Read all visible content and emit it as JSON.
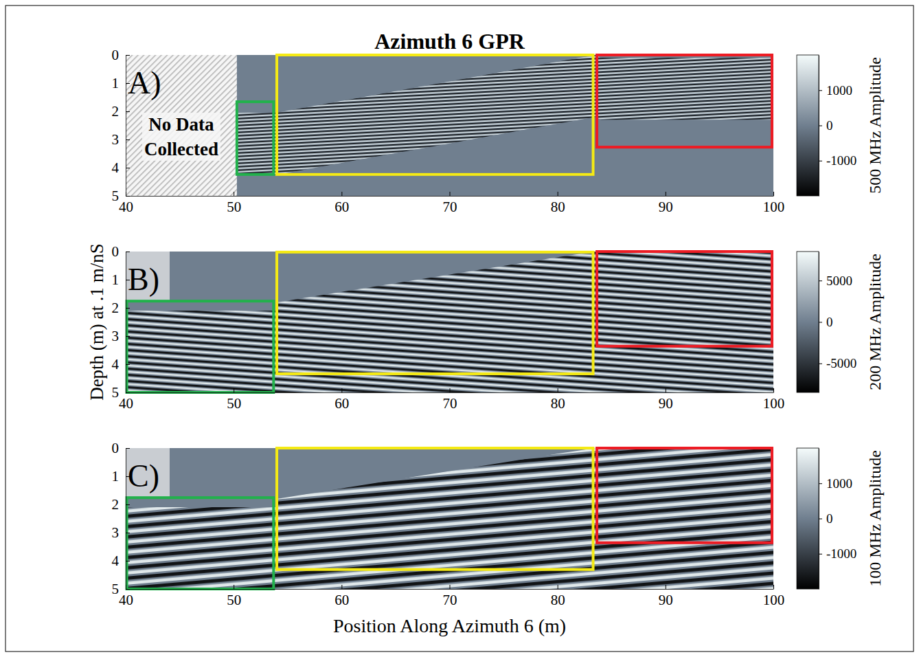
{
  "chart_data": [
    {
      "type": "heatmap",
      "title": "Azimuth 6 GPR",
      "panel_label": "A)",
      "xlim": [
        40,
        100
      ],
      "xticks": [
        40,
        50,
        60,
        70,
        80,
        90,
        100
      ],
      "ylim": [
        0,
        5
      ],
      "yticks": [
        0,
        1,
        2,
        3,
        4,
        5
      ],
      "colorbar": {
        "label": "500 MHz Amplitude",
        "range": [
          -2000,
          2000
        ],
        "ticks": [
          -1000,
          0,
          1000
        ],
        "colors": [
          "#000000",
          "#707f8f",
          "#f4fbfb"
        ]
      },
      "no_data": {
        "label": "No Data Collected",
        "x": [
          40,
          50.3
        ]
      },
      "data_extent": {
        "x": [
          50.3,
          54,
          60,
          70,
          80,
          83.5,
          84,
          90,
          100
        ],
        "top": [
          2.05,
          2.05,
          1.63,
          0.94,
          0.24,
          0.0,
          0.1,
          0.1,
          0.1
        ],
        "bottom": [
          4.25,
          4.25,
          3.83,
          3.14,
          2.44,
          2.2,
          2.3,
          2.3,
          2.3
        ]
      },
      "boxes": [
        {
          "color": "#22b14c",
          "x": [
            50.3,
            53.7
          ],
          "y": [
            1.66,
            4.24
          ]
        },
        {
          "color": "#f5ea14",
          "x": [
            54.0,
            83.3
          ],
          "y": [
            0.0,
            4.24
          ]
        },
        {
          "color": "#ed1c24",
          "x": [
            83.65,
            99.87
          ],
          "y": [
            0.0,
            3.27
          ]
        }
      ]
    },
    {
      "type": "heatmap",
      "panel_label": "B)",
      "ylabel": "Depth (m) at .1 m/nS",
      "xlim": [
        40,
        100
      ],
      "xticks": [
        40,
        50,
        60,
        70,
        80,
        90,
        100
      ],
      "ylim": [
        0,
        5
      ],
      "yticks": [
        0,
        1,
        2,
        3,
        4,
        5
      ],
      "colorbar": {
        "label": "200 MHz Amplitude",
        "range": [
          -8500,
          8500
        ],
        "ticks": [
          -5000,
          0,
          5000
        ],
        "colors": [
          "#000000",
          "#707f8f",
          "#f4fbfb"
        ]
      },
      "data_extent": {
        "x": [
          40,
          54,
          54.1,
          60,
          70,
          80,
          83.5,
          84,
          100
        ],
        "top": [
          2.1,
          2.1,
          1.8,
          1.43,
          0.82,
          0.2,
          0.0,
          0.05,
          0.05
        ],
        "bottom": [
          5,
          5,
          5,
          5,
          5,
          5,
          5,
          5,
          5
        ]
      },
      "boxes": [
        {
          "color": "#22b14c",
          "x": [
            40.1,
            53.7
          ],
          "y": [
            1.76,
            5.0
          ]
        },
        {
          "color": "#f5ea14",
          "x": [
            54.0,
            83.3
          ],
          "y": [
            0.02,
            4.34
          ]
        },
        {
          "color": "#ed1c24",
          "x": [
            83.65,
            99.87
          ],
          "y": [
            0.0,
            3.36
          ]
        }
      ]
    },
    {
      "type": "heatmap",
      "panel_label": "C)",
      "xlabel": "Position Along Azimuth 6 (m)",
      "xlim": [
        40,
        100
      ],
      "xticks": [
        40,
        50,
        60,
        70,
        80,
        90,
        100
      ],
      "ylim": [
        0,
        5
      ],
      "yticks": [
        0,
        1,
        2,
        3,
        4,
        5
      ],
      "colorbar": {
        "label": "100 MHz Amplitude",
        "range": [
          -2000,
          2000
        ],
        "ticks": [
          -1000,
          0,
          1000
        ],
        "colors": [
          "#000000",
          "#707f8f",
          "#f4fbfb"
        ]
      },
      "data_extent": {
        "x": [
          40,
          54,
          54.1,
          60,
          70,
          80,
          83.5,
          84,
          100
        ],
        "top": [
          2.1,
          2.1,
          1.8,
          1.43,
          0.82,
          0.2,
          0.0,
          0.05,
          0.05
        ],
        "bottom": [
          5,
          5,
          5,
          5,
          5,
          5,
          5,
          5,
          5
        ]
      },
      "boxes": [
        {
          "color": "#22b14c",
          "x": [
            40.1,
            53.7
          ],
          "y": [
            1.76,
            5.0
          ]
        },
        {
          "color": "#f5ea14",
          "x": [
            54.0,
            83.3
          ],
          "y": [
            0.0,
            4.31
          ]
        },
        {
          "color": "#ed1c24",
          "x": [
            83.65,
            99.87
          ],
          "y": [
            0.0,
            3.36
          ]
        }
      ]
    }
  ]
}
